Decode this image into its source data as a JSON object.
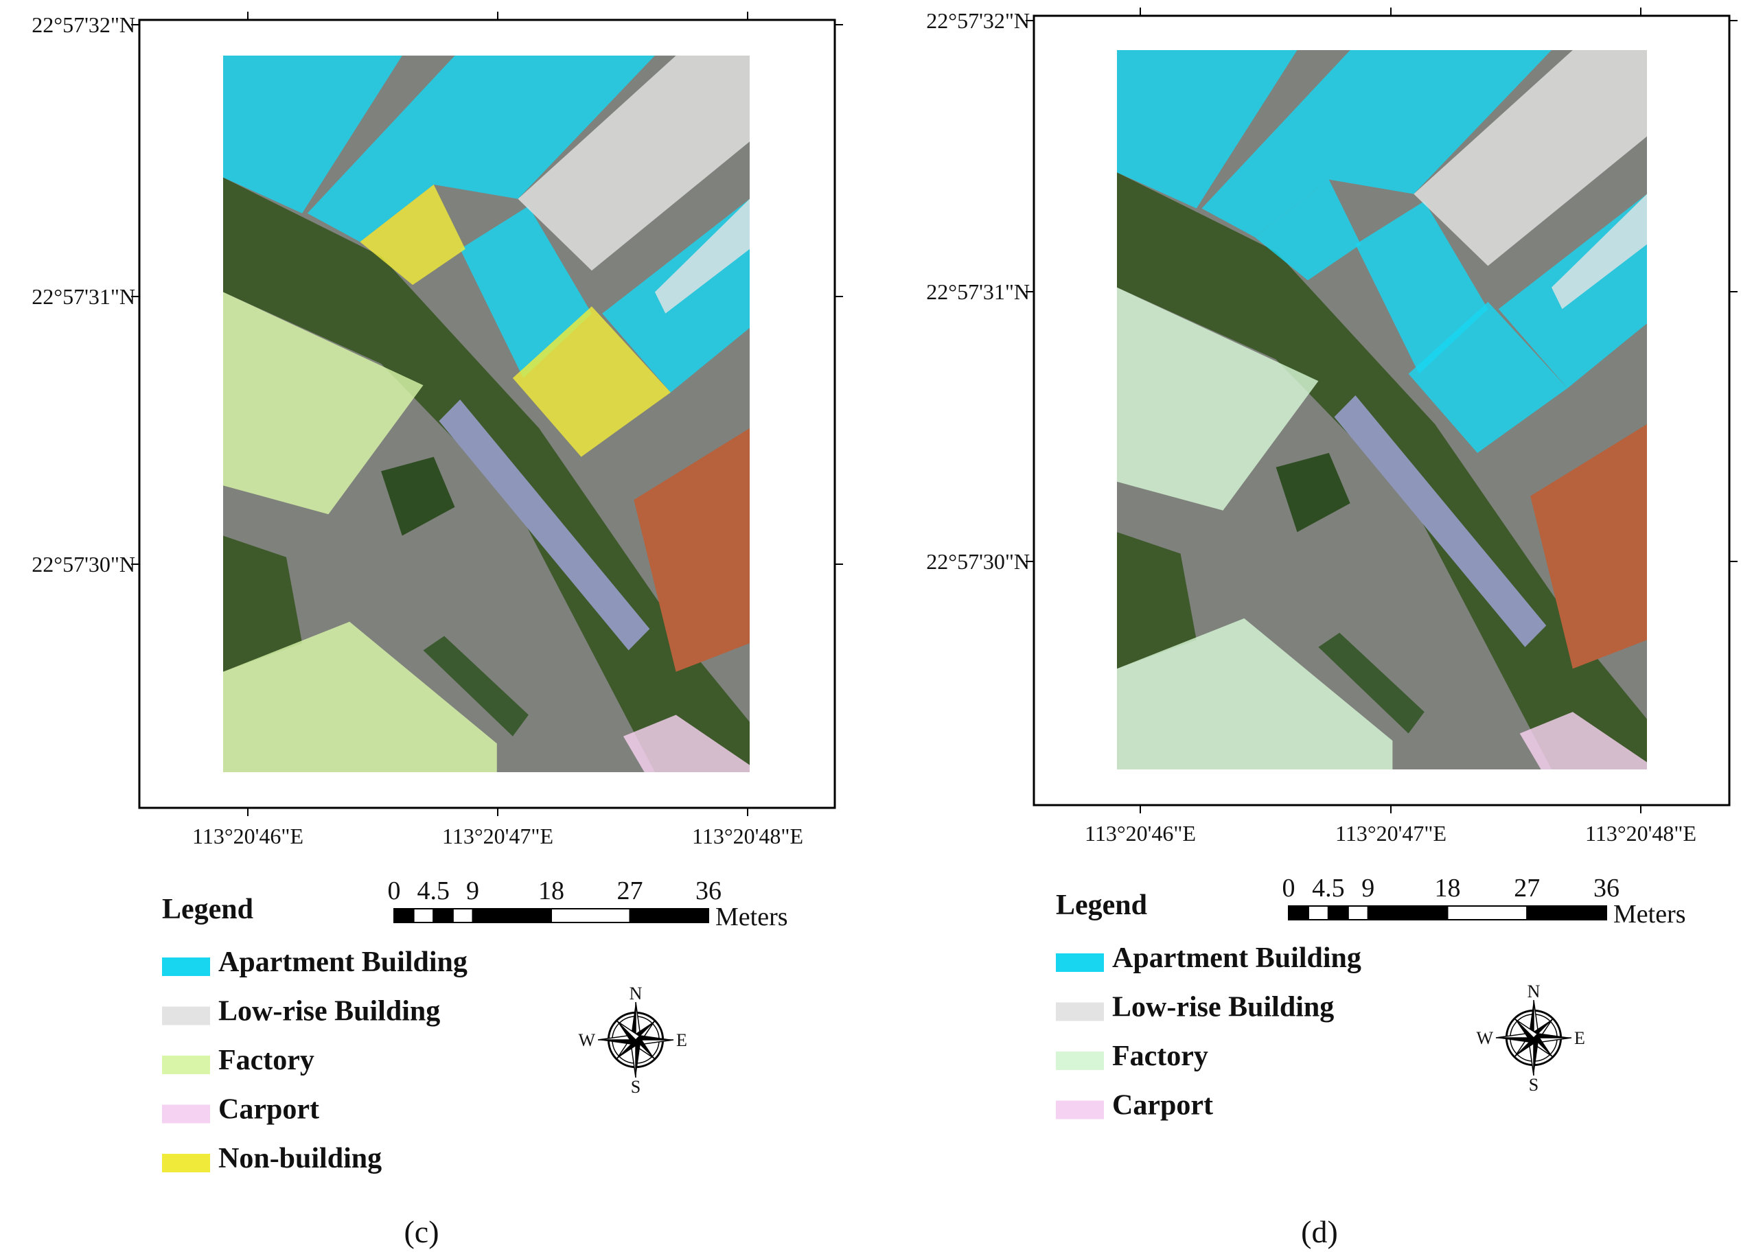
{
  "panels": [
    {
      "label": "(c)",
      "lat_labels": [
        "22°57'32\"N",
        "22°57'31\"N",
        "22°57'30\"N"
      ],
      "lon_labels": [
        "113°20'46\"E",
        "113°20'47\"E",
        "113°20'48\"E"
      ],
      "scale": {
        "ticks": [
          0,
          4.5,
          9,
          18,
          27,
          36
        ],
        "unit": "Meters"
      },
      "legend": {
        "title": "Legend",
        "items": [
          {
            "name": "Apartment Building",
            "color": "#19d6f0"
          },
          {
            "name": "Low-rise Building",
            "color": "#e3e3e3"
          },
          {
            "name": "Factory",
            "color": "#d8f5a8"
          },
          {
            "name": "Carport",
            "color": "#f6d2f2"
          },
          {
            "name": "Non-building",
            "color": "#f0ea3a"
          }
        ]
      },
      "compass": {
        "n": "N",
        "e": "E",
        "s": "S",
        "w": "W"
      }
    },
    {
      "label": "(d)",
      "lat_labels": [
        "22°57'32\"N",
        "22°57'31\"N",
        "22°57'30\"N"
      ],
      "lon_labels": [
        "113°20'46\"E",
        "113°20'47\"E",
        "113°20'48\"E"
      ],
      "scale": {
        "ticks": [
          0,
          4.5,
          9,
          18,
          27,
          36
        ],
        "unit": "Meters"
      },
      "legend": {
        "title": "Legend",
        "items": [
          {
            "name": "Apartment Building",
            "color": "#19d6f0"
          },
          {
            "name": "Low-rise Building",
            "color": "#e3e3e3"
          },
          {
            "name": "Factory",
            "color": "#d6f6d6"
          },
          {
            "name": "Carport",
            "color": "#f6d2f2"
          }
        ]
      },
      "compass": {
        "n": "N",
        "e": "E",
        "s": "S",
        "w": "W"
      }
    }
  ]
}
